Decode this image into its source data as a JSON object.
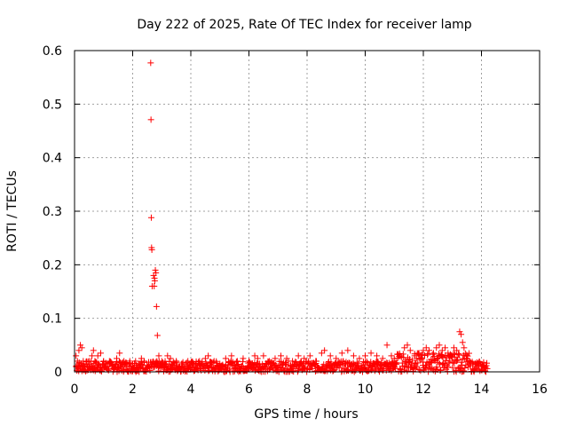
{
  "chart_data": {
    "type": "scatter",
    "title": "Day 222 of 2025, Rate Of TEC Index for receiver lamp",
    "xlabel": "GPS time / hours",
    "ylabel": "ROTI / TECUs",
    "xlim": [
      0,
      16
    ],
    "ylim": [
      0,
      0.6
    ],
    "x_ticks": [
      0,
      2,
      4,
      6,
      8,
      10,
      12,
      14,
      16
    ],
    "y_ticks": [
      0,
      0.1,
      0.2,
      0.3,
      0.4,
      0.5,
      0.6
    ],
    "x_tick_labels": [
      "0",
      "2",
      "4",
      "6",
      "8",
      "10",
      "12",
      "14",
      "16"
    ],
    "y_tick_labels": [
      "0",
      "0.1",
      "0.2",
      "0.3",
      "0.4",
      "0.5",
      "0.6"
    ],
    "grid": true,
    "marker": "+",
    "marker_color": "#ff0000",
    "series": [
      {
        "name": "ROTI",
        "points": [
          [
            0.05,
            0.03
          ],
          [
            0.1,
            0.02
          ],
          [
            0.15,
            0.04
          ],
          [
            0.2,
            0.05
          ],
          [
            0.25,
            0.045
          ],
          [
            0.3,
            0.02
          ],
          [
            0.4,
            0.015
          ],
          [
            0.5,
            0.02
          ],
          [
            0.6,
            0.03
          ],
          [
            0.65,
            0.04
          ],
          [
            0.7,
            0.02
          ],
          [
            0.8,
            0.03
          ],
          [
            0.9,
            0.035
          ],
          [
            1.0,
            0.02
          ],
          [
            1.1,
            0.015
          ],
          [
            1.2,
            0.02
          ],
          [
            1.3,
            0.01
          ],
          [
            1.45,
            0.025
          ],
          [
            1.55,
            0.035
          ],
          [
            1.7,
            0.02
          ],
          [
            1.8,
            0.015
          ],
          [
            1.9,
            0.02
          ],
          [
            2.0,
            0.015
          ],
          [
            2.1,
            0.02
          ],
          [
            2.2,
            0.015
          ],
          [
            2.3,
            0.025
          ],
          [
            2.4,
            0.02
          ],
          [
            2.62,
            0.577
          ],
          [
            2.63,
            0.471
          ],
          [
            2.64,
            0.288
          ],
          [
            2.65,
            0.232
          ],
          [
            2.66,
            0.228
          ],
          [
            2.67,
            0.16
          ],
          [
            2.72,
            0.18
          ],
          [
            2.75,
            0.175
          ],
          [
            2.78,
            0.19
          ],
          [
            2.8,
            0.185
          ],
          [
            2.76,
            0.17
          ],
          [
            2.74,
            0.16
          ],
          [
            2.82,
            0.122
          ],
          [
            2.85,
            0.068
          ],
          [
            2.9,
            0.03
          ],
          [
            3.0,
            0.02
          ],
          [
            3.1,
            0.015
          ],
          [
            3.2,
            0.03
          ],
          [
            3.3,
            0.025
          ],
          [
            3.5,
            0.02
          ],
          [
            3.7,
            0.015
          ],
          [
            3.9,
            0.02
          ],
          [
            4.1,
            0.015
          ],
          [
            4.3,
            0.02
          ],
          [
            4.5,
            0.025
          ],
          [
            4.6,
            0.03
          ],
          [
            4.8,
            0.02
          ],
          [
            5.0,
            0.015
          ],
          [
            5.2,
            0.025
          ],
          [
            5.4,
            0.03
          ],
          [
            5.6,
            0.02
          ],
          [
            5.8,
            0.025
          ],
          [
            6.0,
            0.02
          ],
          [
            6.2,
            0.03
          ],
          [
            6.3,
            0.025
          ],
          [
            6.5,
            0.03
          ],
          [
            6.7,
            0.02
          ],
          [
            6.9,
            0.025
          ],
          [
            7.1,
            0.03
          ],
          [
            7.3,
            0.025
          ],
          [
            7.5,
            0.02
          ],
          [
            7.7,
            0.03
          ],
          [
            7.9,
            0.025
          ],
          [
            8.1,
            0.03
          ],
          [
            8.3,
            0.02
          ],
          [
            8.5,
            0.035
          ],
          [
            8.6,
            0.04
          ],
          [
            8.8,
            0.03
          ],
          [
            9.0,
            0.025
          ],
          [
            9.2,
            0.035
          ],
          [
            9.4,
            0.04
          ],
          [
            9.6,
            0.03
          ],
          [
            9.8,
            0.025
          ],
          [
            10.0,
            0.03
          ],
          [
            10.2,
            0.035
          ],
          [
            10.4,
            0.03
          ],
          [
            10.6,
            0.025
          ],
          [
            10.75,
            0.05
          ],
          [
            10.9,
            0.03
          ],
          [
            11.0,
            0.025
          ],
          [
            11.2,
            0.03
          ],
          [
            11.35,
            0.045
          ],
          [
            11.45,
            0.05
          ],
          [
            11.55,
            0.04
          ],
          [
            11.7,
            0.03
          ],
          [
            11.85,
            0.035
          ],
          [
            12.0,
            0.04
          ],
          [
            12.1,
            0.045
          ],
          [
            12.2,
            0.04
          ],
          [
            12.35,
            0.035
          ],
          [
            12.45,
            0.045
          ],
          [
            12.55,
            0.05
          ],
          [
            12.65,
            0.04
          ],
          [
            12.75,
            0.045
          ],
          [
            12.85,
            0.035
          ],
          [
            12.95,
            0.03
          ],
          [
            13.05,
            0.045
          ],
          [
            13.15,
            0.04
          ],
          [
            13.25,
            0.075
          ],
          [
            13.3,
            0.07
          ],
          [
            13.35,
            0.055
          ],
          [
            13.4,
            0.045
          ],
          [
            13.5,
            0.03
          ],
          [
            13.6,
            0.02
          ],
          [
            13.7,
            0.015
          ],
          [
            13.8,
            0.01
          ],
          [
            13.9,
            0.012
          ],
          [
            14.0,
            0.01
          ],
          [
            14.1,
            0.008
          ],
          [
            14.2,
            0.006
          ]
        ]
      }
    ]
  }
}
